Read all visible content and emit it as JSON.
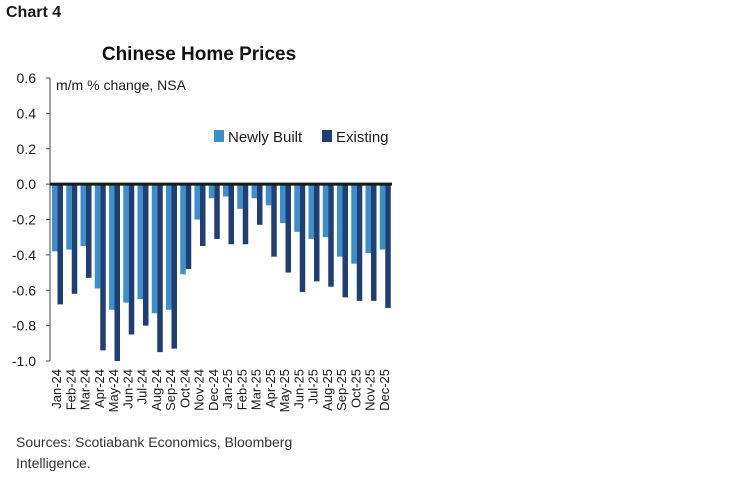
{
  "chart_label": "Chart 4",
  "source": "Sources: Scotiabank Economics, Bloomberg Intelligence.",
  "chart_data": {
    "type": "bar",
    "title": "Chinese Home Prices",
    "ylabel": "m/m % change, NSA",
    "xlabel": "",
    "ylim": [
      -1.0,
      0.6
    ],
    "yticks": [
      "0.6",
      "0.4",
      "0.2",
      "0.0",
      "-0.2",
      "-0.4",
      "-0.6",
      "-0.8",
      "-1.0"
    ],
    "legend_position": "top-right",
    "grid": false,
    "categories": [
      "Jan-24",
      "Feb-24",
      "Mar-24",
      "Apr-24",
      "May-24",
      "Jun-24",
      "Jul-24",
      "Aug-24",
      "Sep-24",
      "Oct-24",
      "Nov-24",
      "Dec-24",
      "Jan-25",
      "Feb-25",
      "Mar-25",
      "Apr-25",
      "May-25",
      "Jun-25",
      "Jul-25",
      "Aug-25",
      "Sep-25",
      "Oct-25",
      "Nov-25",
      "Dec-25"
    ],
    "series": [
      {
        "name": "Newly Built",
        "color": "#3d8fcc",
        "values": [
          -0.38,
          -0.37,
          -0.35,
          -0.59,
          -0.71,
          -0.67,
          -0.65,
          -0.73,
          -0.71,
          -0.51,
          -0.2,
          -0.08,
          -0.07,
          -0.14,
          -0.08,
          -0.12,
          -0.22,
          -0.27,
          -0.31,
          -0.3,
          -0.41,
          -0.45,
          -0.39,
          -0.37
        ]
      },
      {
        "name": "Existing",
        "color": "#1f3f73",
        "values": [
          -0.68,
          -0.62,
          -0.53,
          -0.94,
          -1.0,
          -0.85,
          -0.8,
          -0.95,
          -0.93,
          -0.48,
          -0.35,
          -0.31,
          -0.34,
          -0.34,
          -0.23,
          -0.41,
          -0.5,
          -0.61,
          -0.55,
          -0.58,
          -0.64,
          -0.66,
          -0.66,
          -0.7
        ]
      }
    ]
  }
}
